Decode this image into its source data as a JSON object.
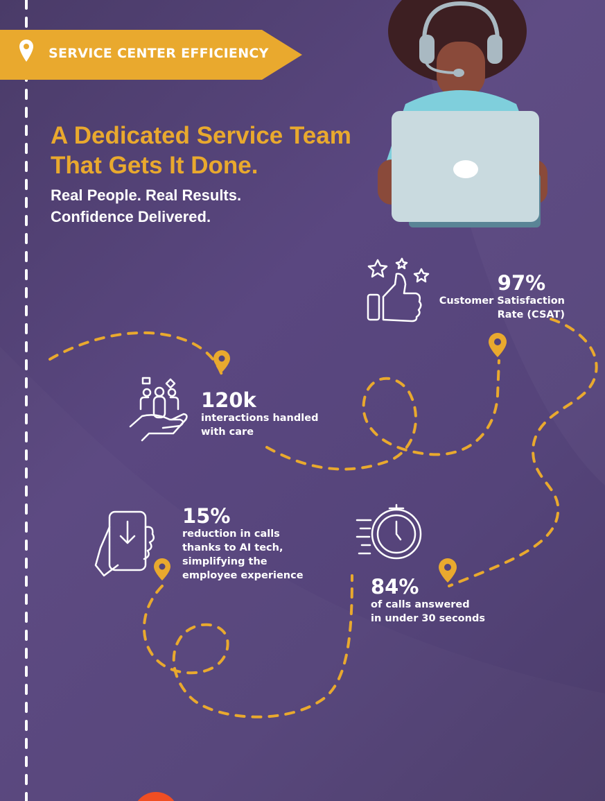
{
  "banner": {
    "label": "SERVICE CENTER EFFICIENCY",
    "icon": "location-pin-icon",
    "color": "#e9a92e"
  },
  "headline": {
    "line1": "A Dedicated Service Team",
    "line2": "That Gets It Done."
  },
  "tagline": {
    "line1": "Real People. Real Results.",
    "line2": "Confidence Delivered."
  },
  "stats": [
    {
      "value": "97%",
      "desc_lines": [
        "Customer Satisfaction",
        "Rate (CSAT)"
      ],
      "icon": "thumbs-up-stars-icon"
    },
    {
      "value": "120k",
      "desc_lines": [
        "interactions handled",
        "with care"
      ],
      "icon": "hand-with-people-icon"
    },
    {
      "value": "15%",
      "desc_lines": [
        "reduction in calls",
        "thanks to AI tech,",
        "simplifying the",
        "employee experience"
      ],
      "icon": "phone-in-hand-icon"
    },
    {
      "value": "84%",
      "desc_lines": [
        "of calls answered",
        "in under 30 seconds"
      ],
      "icon": "fast-clock-icon"
    }
  ],
  "colors": {
    "background": "#53437a",
    "accent": "#e9a92e",
    "text": "#ffffff",
    "bottom_circle": "#f04e23"
  }
}
